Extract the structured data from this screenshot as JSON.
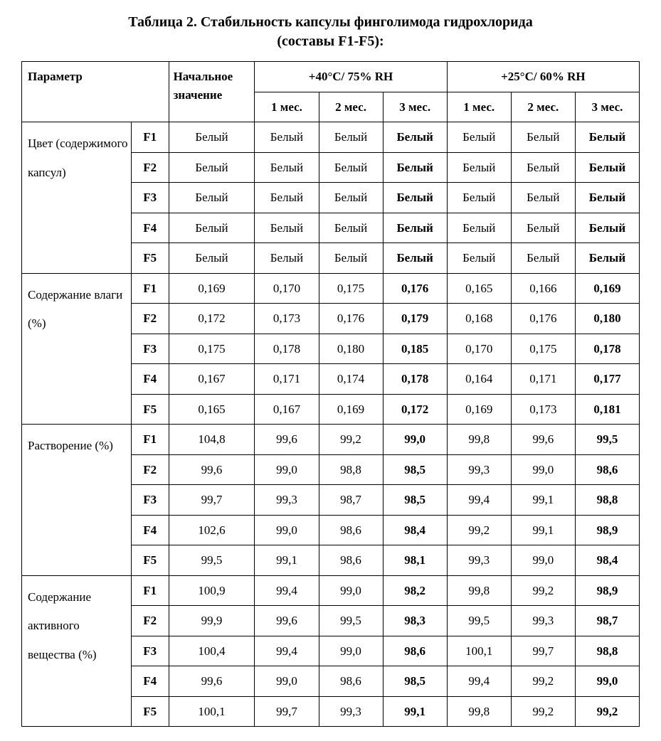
{
  "title": "Таблица 2. Стабильность капсулы финголимода гидрохлорида",
  "subtitle": "(составы F1-F5):",
  "header": {
    "parameter": "Параметр",
    "initial": "Начальное значение",
    "cond1": "+40°C/ 75% RH",
    "cond2": "+25°C/ 60% RH",
    "m1": "1 мес.",
    "m2": "2 мес.",
    "m3": "3 мес."
  },
  "params": [
    {
      "label": "Цвет (содержимого капсул)",
      "rows": [
        {
          "f": "F1",
          "i": "Белый",
          "a1": "Белый",
          "a2": "Белый",
          "a3": "Белый",
          "b1": "Белый",
          "b2": "Белый",
          "b3": "Белый"
        },
        {
          "f": "F2",
          "i": "Белый",
          "a1": "Белый",
          "a2": "Белый",
          "a3": "Белый",
          "b1": "Белый",
          "b2": "Белый",
          "b3": "Белый"
        },
        {
          "f": "F3",
          "i": "Белый",
          "a1": "Белый",
          "a2": "Белый",
          "a3": "Белый",
          "b1": "Белый",
          "b2": "Белый",
          "b3": "Белый"
        },
        {
          "f": "F4",
          "i": "Белый",
          "a1": "Белый",
          "a2": "Белый",
          "a3": "Белый",
          "b1": "Белый",
          "b2": "Белый",
          "b3": "Белый"
        },
        {
          "f": "F5",
          "i": "Белый",
          "a1": "Белый",
          "a2": "Белый",
          "a3": "Белый",
          "b1": "Белый",
          "b2": "Белый",
          "b3": "Белый"
        }
      ]
    },
    {
      "label": "Содержание влаги (%)",
      "rows": [
        {
          "f": "F1",
          "i": "0,169",
          "a1": "0,170",
          "a2": "0,175",
          "a3": "0,176",
          "b1": "0,165",
          "b2": "0,166",
          "b3": "0,169"
        },
        {
          "f": "F2",
          "i": "0,172",
          "a1": "0,173",
          "a2": "0,176",
          "a3": "0,179",
          "b1": "0,168",
          "b2": "0,176",
          "b3": "0,180"
        },
        {
          "f": "F3",
          "i": "0,175",
          "a1": "0,178",
          "a2": "0,180",
          "a3": "0,185",
          "b1": "0,170",
          "b2": "0,175",
          "b3": "0,178"
        },
        {
          "f": "F4",
          "i": "0,167",
          "a1": "0,171",
          "a2": "0,174",
          "a3": "0,178",
          "b1": "0,164",
          "b2": "0,171",
          "b3": "0,177"
        },
        {
          "f": "F5",
          "i": "0,165",
          "a1": "0,167",
          "a2": "0,169",
          "a3": "0,172",
          "b1": "0,169",
          "b2": "0,173",
          "b3": "0,181"
        }
      ]
    },
    {
      "label": "Растворение (%)",
      "rows": [
        {
          "f": "F1",
          "i": "104,8",
          "a1": "99,6",
          "a2": "99,2",
          "a3": "99,0",
          "b1": "99,8",
          "b2": "99,6",
          "b3": "99,5"
        },
        {
          "f": "F2",
          "i": "99,6",
          "a1": "99,0",
          "a2": "98,8",
          "a3": "98,5",
          "b1": "99,3",
          "b2": "99,0",
          "b3": "98,6"
        },
        {
          "f": "F3",
          "i": "99,7",
          "a1": "99,3",
          "a2": "98,7",
          "a3": "98,5",
          "b1": "99,4",
          "b2": "99,1",
          "b3": "98,8"
        },
        {
          "f": "F4",
          "i": "102,6",
          "a1": "99,0",
          "a2": "98,6",
          "a3": "98,4",
          "b1": "99,2",
          "b2": "99,1",
          "b3": "98,9"
        },
        {
          "f": "F5",
          "i": "99,5",
          "a1": "99,1",
          "a2": "98,6",
          "a3": "98,1",
          "b1": "99,3",
          "b2": "99,0",
          "b3": "98,4"
        }
      ]
    },
    {
      "label": "Содержание активного вещества (%)",
      "rows": [
        {
          "f": "F1",
          "i": "100,9",
          "a1": "99,4",
          "a2": "99,0",
          "a3": "98,2",
          "b1": "99,8",
          "b2": "99,2",
          "b3": "98,9"
        },
        {
          "f": "F2",
          "i": "99,9",
          "a1": "99,6",
          "a2": "99,5",
          "a3": "98,3",
          "b1": "99,5",
          "b2": "99,3",
          "b3": "98,7"
        },
        {
          "f": "F3",
          "i": "100,4",
          "a1": "99,4",
          "a2": "99,0",
          "a3": "98,6",
          "b1": "100,1",
          "b2": "99,7",
          "b3": "98,8"
        },
        {
          "f": "F4",
          "i": "99,6",
          "a1": "99,0",
          "a2": "98,6",
          "a3": "98,5",
          "b1": "99,4",
          "b2": "99,2",
          "b3": "99,0"
        },
        {
          "f": "F5",
          "i": "100,1",
          "a1": "99,7",
          "a2": "99,3",
          "a3": "99,1",
          "b1": "99,8",
          "b2": "99,2",
          "b3": "99,2"
        }
      ]
    }
  ]
}
